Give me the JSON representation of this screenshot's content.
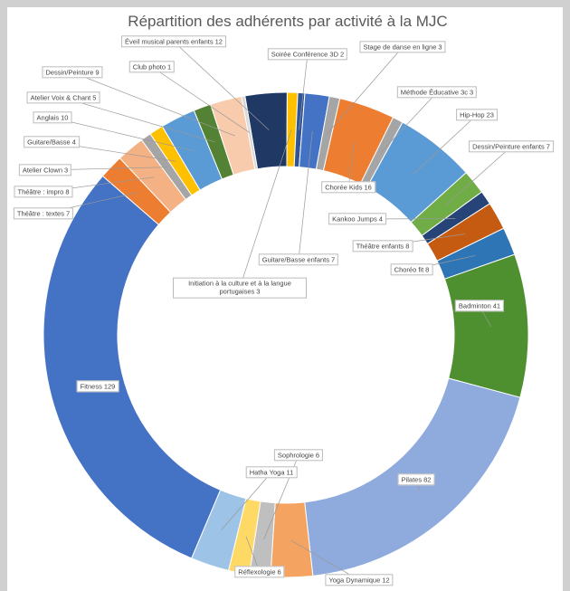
{
  "chart_data": {
    "type": "donut",
    "title": "Répartition des adhérents par activité à la MJC",
    "categories": [
      "Éveil musical parents enfants",
      "Initiation à la culture et à la langue portugaises",
      "Soirée Conférence 3D",
      "Guitare/Basse enfants",
      "Stage de danse en ligne",
      "Chorée Kids",
      "Méthode Éducative 3c",
      "Hip-Hop",
      "Dessin/Peinture enfants",
      "Kankoo Jumps",
      "Théâtre enfants",
      "Choréo fit",
      "Badminton",
      "Pilates",
      "Yoga Dynamique",
      "Sophrologie",
      "Réflexologie",
      "Hatha Yoga",
      "Fitness",
      "Théâtre : textes",
      "Théâtre : impro",
      "Atelier Clown",
      "Guitare/Basse",
      "Anglais",
      "Atelier Voix & Chant",
      "Dessin/Peinture",
      "Club photo"
    ],
    "values": [
      12,
      3,
      2,
      7,
      3,
      16,
      3,
      23,
      7,
      4,
      8,
      8,
      41,
      82,
      12,
      6,
      6,
      11,
      129,
      7,
      8,
      3,
      4,
      10,
      5,
      9,
      1
    ],
    "colors": [
      "#203864",
      "#ffc000",
      "#2f5597",
      "#4472c4",
      "#a5a5a5",
      "#ed7d31",
      "#a5a5a5",
      "#5b9bd5",
      "#70ad47",
      "#264478",
      "#c55a11",
      "#2e75b6",
      "#4e8f2f",
      "#8faadc",
      "#f4a460",
      "#bfbfbf",
      "#ffd966",
      "#9dc3e6",
      "#4472c4",
      "#ed7d31",
      "#f4b183",
      "#a5a5a5",
      "#ffc000",
      "#5b9bd5",
      "#548235",
      "#f8cbad",
      "#d9d9d9"
    ]
  }
}
